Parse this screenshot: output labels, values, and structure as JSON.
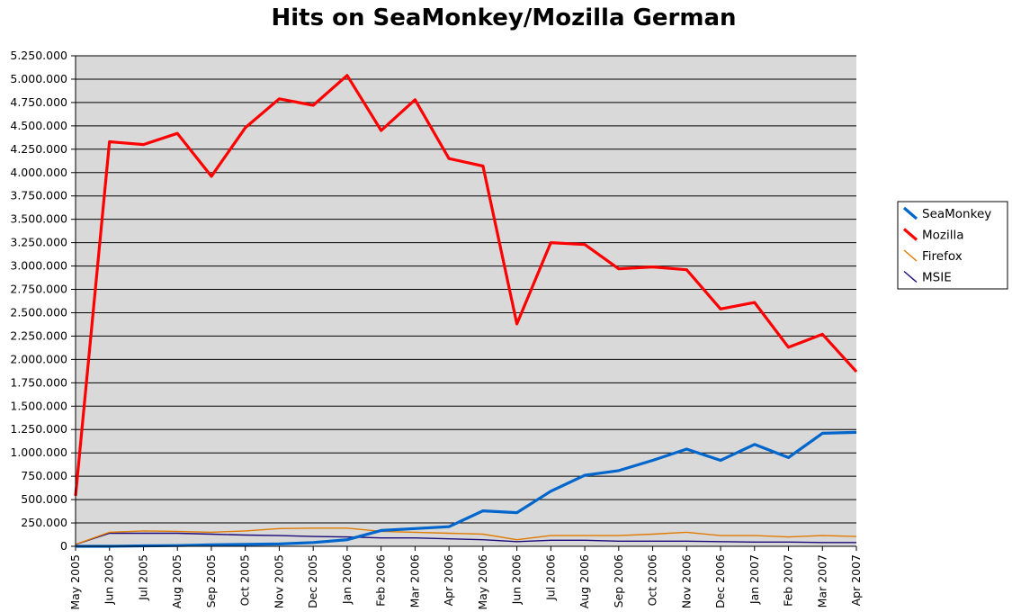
{
  "chart_data": {
    "type": "line",
    "title": "Hits on SeaMonkey/Mozilla German",
    "xlabel": "",
    "ylabel": "",
    "ylim": [
      0,
      5250000
    ],
    "yticks": [
      0,
      250000,
      500000,
      750000,
      1000000,
      1250000,
      1500000,
      1750000,
      2000000,
      2250000,
      2500000,
      2750000,
      3000000,
      3250000,
      3500000,
      3750000,
      4000000,
      4250000,
      4500000,
      4750000,
      5000000,
      5250000
    ],
    "ytick_labels": [
      "0",
      "250.000",
      "500.000",
      "750.000",
      "1.000.000",
      "1.250.000",
      "1.500.000",
      "1.750.000",
      "2.000.000",
      "2.250.000",
      "2.500.000",
      "2.750.000",
      "3.000.000",
      "3.250.000",
      "3.500.000",
      "3.750.000",
      "4.000.000",
      "4.250.000",
      "4.500.000",
      "4.750.000",
      "5.000.000",
      "5.250.000"
    ],
    "categories": [
      "May 2005",
      "Jun 2005",
      "Jul 2005",
      "Aug 2005",
      "Sep 2005",
      "Oct 2005",
      "Nov 2005",
      "Dec 2005",
      "Jan 2006",
      "Feb 2006",
      "Mar 2006",
      "Apr 2006",
      "May 2006",
      "Jun 2006",
      "Jul 2006",
      "Aug 2006",
      "Sep 2006",
      "Oct 2006",
      "Nov 2006",
      "Dec 2006",
      "Jan 2007",
      "Feb 2007",
      "Mar 2007",
      "Apr 2007"
    ],
    "grid": true,
    "plot_background": "#d9d9d9",
    "legend_position": "right",
    "series": [
      {
        "name": "SeaMonkey",
        "color": "#0066cc",
        "width": "thick",
        "values": [
          0,
          0,
          5000,
          8000,
          15000,
          20000,
          25000,
          40000,
          70000,
          170000,
          190000,
          210000,
          380000,
          360000,
          590000,
          760000,
          810000,
          920000,
          1040000,
          920000,
          1090000,
          950000,
          1210000,
          1220000
        ]
      },
      {
        "name": "Mozilla",
        "color": "#ff0000",
        "width": "thick",
        "values": [
          540000,
          4330000,
          4300000,
          4420000,
          3960000,
          4480000,
          4790000,
          4720000,
          5040000,
          4450000,
          4780000,
          4150000,
          4070000,
          2380000,
          3250000,
          3230000,
          2970000,
          2990000,
          2960000,
          2540000,
          2610000,
          2130000,
          2270000,
          1870000
        ]
      },
      {
        "name": "Firefox",
        "color": "#e07b00",
        "width": "thin",
        "values": [
          20000,
          150000,
          165000,
          160000,
          150000,
          165000,
          190000,
          195000,
          195000,
          160000,
          150000,
          140000,
          130000,
          70000,
          115000,
          115000,
          115000,
          130000,
          150000,
          115000,
          115000,
          100000,
          115000,
          105000
        ]
      },
      {
        "name": "MSIE",
        "color": "#1a0a7a",
        "width": "thin",
        "values": [
          20000,
          140000,
          140000,
          140000,
          130000,
          120000,
          115000,
          105000,
          100000,
          90000,
          90000,
          80000,
          70000,
          50000,
          65000,
          65000,
          55000,
          55000,
          55000,
          50000,
          45000,
          45000,
          40000,
          40000
        ]
      }
    ]
  }
}
